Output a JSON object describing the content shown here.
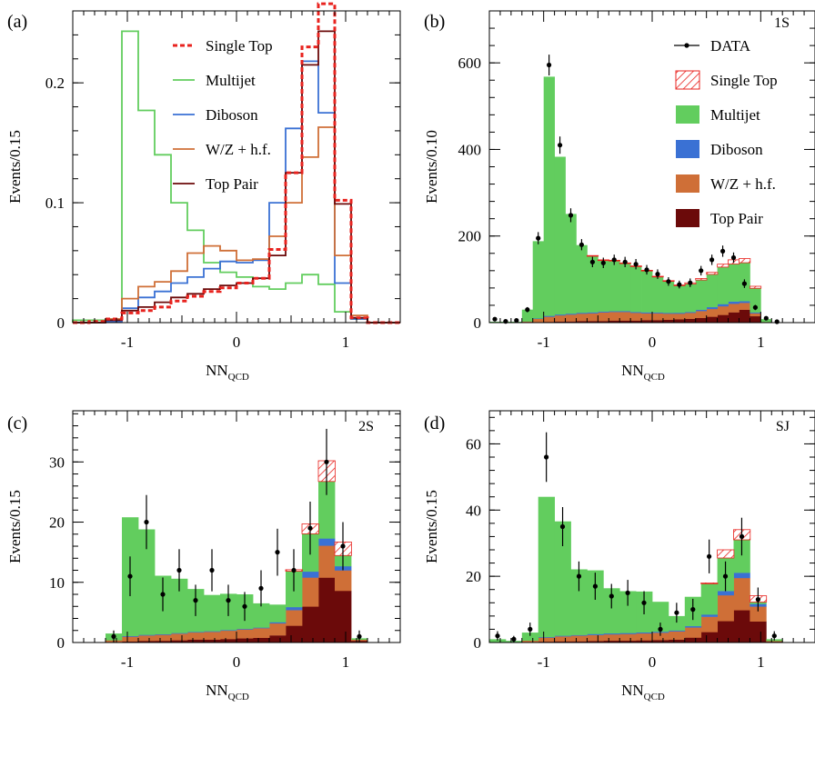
{
  "chart_data": [
    {
      "panel": "(a)",
      "type": "line",
      "step": true,
      "normalized": true,
      "ylabel": "Events/0.15",
      "xlabel_base": "NN",
      "xlabel_sub": "QCD",
      "xlim": [
        -1.5,
        1.5
      ],
      "ylim": [
        0,
        0.26
      ],
      "xticks": [
        -1,
        0,
        1
      ],
      "yticks": [
        0,
        0.1,
        0.2
      ],
      "ytick_labels": [
        "0",
        "0.1",
        "0.2"
      ],
      "legend_position": "top-center",
      "bin_edges": [
        -1.5,
        -1.35,
        -1.2,
        -1.05,
        -0.9,
        -0.75,
        -0.6,
        -0.45,
        -0.3,
        -0.15,
        0,
        0.15,
        0.3,
        0.45,
        0.6,
        0.75,
        0.9,
        1.05,
        1.2,
        1.35,
        1.5
      ],
      "series": [
        {
          "name": "Single Top",
          "color": "#e8231f",
          "dashed": true,
          "values": [
            0,
            0.001,
            0.003,
            0.008,
            0.01,
            0.013,
            0.018,
            0.022,
            0.026,
            0.029,
            0.033,
            0.037,
            0.061,
            0.125,
            0.23,
            0.266,
            0.102,
            0.004,
            0,
            0
          ]
        },
        {
          "name": "Multijet",
          "color": "#62cd5e",
          "values": [
            0.002,
            0.002,
            0.002,
            0.243,
            0.177,
            0.14,
            0.1,
            0.077,
            0.05,
            0.042,
            0.038,
            0.03,
            0.028,
            0.033,
            0.04,
            0.032,
            0.009,
            0.003,
            0,
            0
          ]
        },
        {
          "name": "Diboson",
          "color": "#3a71d4",
          "values": [
            0,
            0,
            0.001,
            0.012,
            0.021,
            0.026,
            0.033,
            0.038,
            0.045,
            0.051,
            0.05,
            0.052,
            0.1,
            0.162,
            0.218,
            0.175,
            0.033,
            0.003,
            0,
            0
          ]
        },
        {
          "name": "W/Z + h.f.",
          "color": "#cf6f37",
          "values": [
            0,
            0,
            0.003,
            0.02,
            0.03,
            0.034,
            0.043,
            0.058,
            0.064,
            0.06,
            0.052,
            0.053,
            0.072,
            0.1,
            0.138,
            0.163,
            0.056,
            0.006,
            0,
            0
          ]
        },
        {
          "name": "Top Pair",
          "color": "#6b0a0a",
          "values": [
            0,
            0,
            0.002,
            0.01,
            0.013,
            0.017,
            0.021,
            0.024,
            0.028,
            0.031,
            0.033,
            0.037,
            0.056,
            0.125,
            0.215,
            0.243,
            0.099,
            0.004,
            0,
            0
          ]
        }
      ]
    },
    {
      "panel": "(b)",
      "tag": "1S",
      "type": "bar",
      "stacked": true,
      "ylabel": "Events/0.10",
      "xlabel_base": "NN",
      "xlabel_sub": "QCD",
      "xlim": [
        -1.5,
        1.5
      ],
      "ylim": [
        0,
        720
      ],
      "xticks": [
        -1,
        0,
        1
      ],
      "yticks": [
        0,
        200,
        400,
        600
      ],
      "ytick_labels": [
        "0",
        "200",
        "400",
        "600"
      ],
      "legend_position": "top-right",
      "bin_edges": [
        -1.5,
        -1.4,
        -1.3,
        -1.2,
        -1.1,
        -1.0,
        -0.9,
        -0.8,
        -0.7,
        -0.6,
        -0.5,
        -0.4,
        -0.3,
        -0.2,
        -0.1,
        0,
        0.1,
        0.2,
        0.3,
        0.4,
        0.5,
        0.6,
        0.7,
        0.8,
        0.9,
        1.0,
        1.1,
        1.2,
        1.3,
        1.4,
        1.5
      ],
      "series": [
        {
          "name": "Top Pair",
          "color": "#6b0a0a",
          "values": [
            0,
            0,
            0,
            1,
            1,
            2,
            3,
            3,
            4,
            4,
            4,
            5,
            5,
            5,
            6,
            6,
            7,
            8,
            9,
            11,
            14,
            18,
            24,
            30,
            15,
            1,
            0,
            0,
            0,
            0
          ]
        },
        {
          "name": "W/Z + h.f.",
          "color": "#cf6f37",
          "values": [
            0,
            0,
            0,
            2,
            8,
            12,
            14,
            16,
            17,
            18,
            20,
            20,
            20,
            18,
            16,
            16,
            14,
            13,
            14,
            16,
            18,
            20,
            20,
            16,
            7,
            1,
            0,
            0,
            0,
            0
          ]
        },
        {
          "name": "Diboson",
          "color": "#3a71d4",
          "values": [
            0,
            0,
            0,
            0,
            1,
            2,
            2,
            2,
            2,
            2,
            2,
            2,
            2,
            2,
            2,
            2,
            2,
            2,
            2,
            3,
            4,
            5,
            5,
            4,
            2,
            0,
            0,
            0,
            0,
            0
          ]
        },
        {
          "name": "Multijet",
          "color": "#62cd5e",
          "values": [
            2,
            2,
            2,
            27,
            178,
            552,
            364,
            230,
            156,
            130,
            118,
            116,
            110,
            105,
            96,
            82,
            73,
            63,
            65,
            69,
            76,
            86,
            87,
            89,
            56,
            6,
            1,
            0,
            0,
            0
          ]
        },
        {
          "name": "Single Top",
          "color": "#e8231f",
          "hatched": true,
          "values": [
            0,
            0,
            0,
            0,
            0,
            0,
            0,
            0,
            0,
            1,
            1,
            1,
            1,
            1,
            1,
            1,
            1,
            1,
            2,
            3,
            4,
            6,
            9,
            9,
            4,
            0,
            0,
            0,
            0,
            0
          ]
        }
      ],
      "data": {
        "name": "DATA",
        "x": [
          -1.45,
          -1.35,
          -1.25,
          -1.15,
          -1.05,
          -0.95,
          -0.85,
          -0.75,
          -0.65,
          -0.55,
          -0.45,
          -0.35,
          -0.25,
          -0.15,
          -0.05,
          0.05,
          0.15,
          0.25,
          0.35,
          0.45,
          0.55,
          0.65,
          0.75,
          0.85,
          0.95,
          1.05,
          1.15
        ],
        "y": [
          8,
          3,
          5,
          30,
          195,
          595,
          410,
          248,
          180,
          140,
          138,
          145,
          140,
          135,
          122,
          112,
          95,
          88,
          92,
          120,
          145,
          165,
          150,
          90,
          35,
          10,
          2
        ],
        "err": [
          3,
          2,
          2,
          6,
          14,
          24,
          20,
          16,
          13,
          12,
          12,
          12,
          12,
          12,
          11,
          11,
          10,
          9,
          10,
          11,
          12,
          13,
          12,
          10,
          6,
          3,
          1.5
        ]
      }
    },
    {
      "panel": "(c)",
      "tag": "2S",
      "type": "bar",
      "stacked": true,
      "ylabel": "Events/0.15",
      "xlabel_base": "NN",
      "xlabel_sub": "QCD",
      "xlim": [
        -1.5,
        1.5
      ],
      "ylim": [
        0,
        38.5
      ],
      "xticks": [
        -1,
        0,
        1
      ],
      "yticks": [
        0,
        10,
        20,
        30
      ],
      "ytick_labels": [
        "0",
        "10",
        "20",
        "30"
      ],
      "bin_edges": [
        -1.5,
        -1.35,
        -1.2,
        -1.05,
        -0.9,
        -0.75,
        -0.6,
        -0.45,
        -0.3,
        -0.15,
        0,
        0.15,
        0.3,
        0.45,
        0.6,
        0.75,
        0.9,
        1.05,
        1.2,
        1.35,
        1.5
      ],
      "series": [
        {
          "name": "Top Pair",
          "color": "#6b0a0a",
          "values": [
            0,
            0,
            0.1,
            0.2,
            0.3,
            0.3,
            0.4,
            0.5,
            0.5,
            0.6,
            0.7,
            0.8,
            1.2,
            2.8,
            6.0,
            10.8,
            8.6,
            0.3,
            0,
            0
          ]
        },
        {
          "name": "W/Z + h.f.",
          "color": "#cf6f37",
          "values": [
            0,
            0,
            0.3,
            0.8,
            0.9,
            1.0,
            1.1,
            1.2,
            1.3,
            1.4,
            1.5,
            1.6,
            2.0,
            2.6,
            4.8,
            5.3,
            3.4,
            0.2,
            0,
            0
          ]
        },
        {
          "name": "Diboson",
          "color": "#3a71d4",
          "values": [
            0,
            0,
            0,
            0.1,
            0.1,
            0.1,
            0.1,
            0.1,
            0.1,
            0.1,
            0.1,
            0.1,
            0.2,
            0.5,
            1.0,
            1.2,
            0.7,
            0,
            0,
            0
          ]
        },
        {
          "name": "Multijet",
          "color": "#62cd5e",
          "values": [
            0,
            0,
            1.1,
            19.7,
            17.5,
            9.7,
            9.0,
            7.1,
            6.0,
            6.0,
            5.7,
            4.0,
            2.9,
            6.0,
            6.3,
            9.5,
            1.8,
            0.2,
            0,
            0
          ]
        },
        {
          "name": "Single Top",
          "color": "#e8231f",
          "hatched": true,
          "values": [
            0,
            0,
            0,
            0,
            0,
            0,
            0,
            0,
            0,
            0,
            0,
            0,
            0,
            0.2,
            1.6,
            3.4,
            2.2,
            0,
            0,
            0
          ]
        }
      ],
      "data": {
        "name": "DATA",
        "x": [
          -1.125,
          -0.975,
          -0.825,
          -0.675,
          -0.525,
          -0.375,
          -0.225,
          -0.075,
          0.075,
          0.225,
          0.375,
          0.525,
          0.675,
          0.825,
          0.975,
          1.125
        ],
        "y": [
          1,
          11,
          20,
          8,
          12,
          7,
          12,
          7,
          6,
          9,
          15,
          12,
          19,
          30,
          16,
          1
        ],
        "err": [
          1,
          3.3,
          4.5,
          2.8,
          3.5,
          2.6,
          3.5,
          2.6,
          2.4,
          3,
          3.9,
          3.5,
          4.4,
          5.5,
          4,
          1
        ]
      }
    },
    {
      "panel": "(d)",
      "tag": "SJ",
      "type": "bar",
      "stacked": true,
      "ylabel": "Events/0.15",
      "xlabel_base": "NN",
      "xlabel_sub": "QCD",
      "xlim": [
        -1.5,
        1.5
      ],
      "ylim": [
        0,
        70
      ],
      "xticks": [
        -1,
        0,
        1
      ],
      "yticks": [
        0,
        20,
        40,
        60
      ],
      "ytick_labels": [
        "0",
        "20",
        "40",
        "60"
      ],
      "bin_edges": [
        -1.5,
        -1.35,
        -1.2,
        -1.05,
        -0.9,
        -0.75,
        -0.6,
        -0.45,
        -0.3,
        -0.15,
        0,
        0.15,
        0.3,
        0.45,
        0.6,
        0.75,
        0.9,
        1.05,
        1.2,
        1.35,
        1.5
      ],
      "series": [
        {
          "name": "Top Pair",
          "color": "#6b0a0a",
          "values": [
            0,
            0,
            0.1,
            0.3,
            0.4,
            0.4,
            0.5,
            0.6,
            0.6,
            0.7,
            0.8,
            0.9,
            1.5,
            3.2,
            6.5,
            9.8,
            6.4,
            0.3,
            0,
            0
          ]
        },
        {
          "name": "W/Z + h.f.",
          "color": "#cf6f37",
          "values": [
            0,
            0,
            0.5,
            1.2,
            1.5,
            1.7,
            1.8,
            1.9,
            2.0,
            2.1,
            2.2,
            2.5,
            3.1,
            4.6,
            7.8,
            9.7,
            4.5,
            0.2,
            0,
            0
          ]
        },
        {
          "name": "Diboson",
          "color": "#3a71d4",
          "values": [
            0,
            0,
            0,
            0.2,
            0.2,
            0.2,
            0.3,
            0.3,
            0.3,
            0.3,
            0.3,
            0.3,
            0.4,
            0.7,
            1.3,
            1.6,
            0.8,
            0,
            0,
            0
          ]
        },
        {
          "name": "Multijet",
          "color": "#62cd5e",
          "values": [
            1.0,
            0.5,
            2.4,
            42.3,
            34.5,
            19.8,
            19.2,
            13.6,
            12.6,
            12.3,
            9.0,
            4.3,
            8.8,
            9.3,
            10.0,
            10.0,
            0.6,
            0.5,
            0,
            0
          ]
        },
        {
          "name": "Single Top",
          "color": "#e8231f",
          "hatched": true,
          "values": [
            0,
            0,
            0,
            0,
            0,
            0,
            0,
            0,
            0,
            0,
            0,
            0,
            0,
            0.2,
            2.4,
            3.0,
            1.8,
            0,
            0,
            0
          ]
        }
      ],
      "data": {
        "name": "DATA",
        "x": [
          -1.425,
          -1.275,
          -1.125,
          -0.975,
          -0.825,
          -0.675,
          -0.525,
          -0.375,
          -0.225,
          -0.075,
          0.075,
          0.225,
          0.375,
          0.525,
          0.675,
          0.825,
          0.975,
          1.125
        ],
        "y": [
          2,
          1,
          4,
          56,
          35,
          20,
          17,
          14,
          15,
          12,
          4,
          9,
          10,
          26,
          20,
          32,
          13,
          2
        ],
        "err": [
          1.4,
          1,
          2,
          7.5,
          5.9,
          4.5,
          4.1,
          3.7,
          3.9,
          3.5,
          2,
          3,
          3.2,
          5.1,
          4.5,
          5.7,
          3.6,
          1.4
        ]
      }
    }
  ],
  "labels": {
    "panel_a": "(a)",
    "panel_b": "(b)",
    "panel_c": "(c)",
    "panel_d": "(d)",
    "tag_b": "1S",
    "tag_c": "2S",
    "tag_d": "SJ"
  },
  "legend_a": [
    {
      "label": "Single Top",
      "color": "#e8231f",
      "style": "dashed"
    },
    {
      "label": "Multijet",
      "color": "#62cd5e",
      "style": "line"
    },
    {
      "label": "Diboson",
      "color": "#3a71d4",
      "style": "line"
    },
    {
      "label": "W/Z + h.f.",
      "color": "#cf6f37",
      "style": "line"
    },
    {
      "label": "Top Pair",
      "color": "#6b0a0a",
      "style": "line"
    }
  ],
  "legend_b": [
    {
      "label": "DATA",
      "color": "#000000",
      "style": "marker"
    },
    {
      "label": "Single Top",
      "color": "#e8231f",
      "style": "hatch"
    },
    {
      "label": "Multijet",
      "color": "#62cd5e",
      "style": "fill"
    },
    {
      "label": "Diboson",
      "color": "#3a71d4",
      "style": "fill"
    },
    {
      "label": "W/Z + h.f.",
      "color": "#cf6f37",
      "style": "fill"
    },
    {
      "label": "Top Pair",
      "color": "#6b0a0a",
      "style": "fill"
    }
  ]
}
